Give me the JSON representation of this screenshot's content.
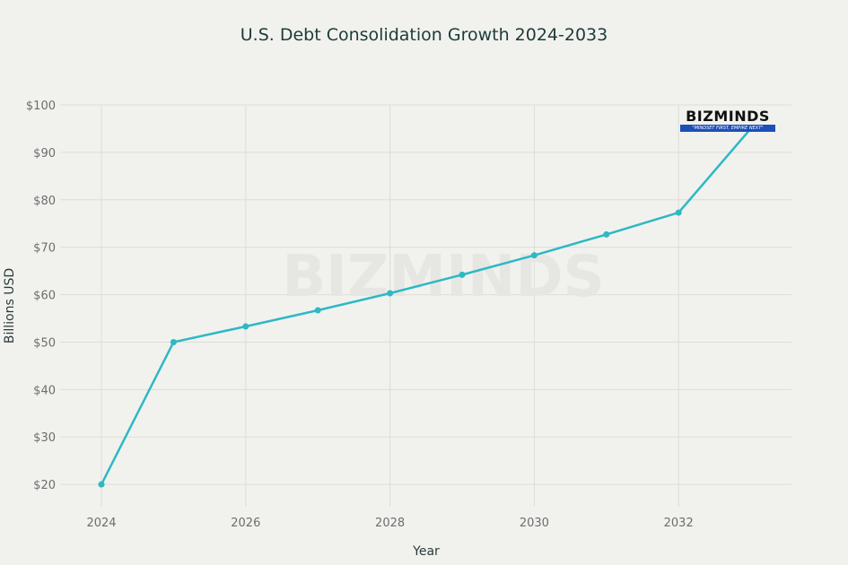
{
  "chart_data": {
    "type": "line",
    "title": "U.S. Debt Consolidation Growth 2024-2033",
    "xlabel": "Year",
    "ylabel": "Billions USD",
    "x": [
      2024,
      2025,
      2026,
      2027,
      2028,
      2029,
      2030,
      2031,
      2032,
      2033
    ],
    "series": [
      {
        "values": [
          20,
          50,
          53.3,
          56.7,
          60.3,
          64.2,
          68.3,
          72.7,
          77.3,
          95
        ]
      }
    ],
    "xticks": [
      "2024",
      "2026",
      "2028",
      "2030",
      "2032"
    ],
    "yticks": [
      "$20",
      "$30",
      "$40",
      "$50",
      "$60",
      "$70",
      "$80",
      "$90",
      "$100"
    ],
    "ylim": [
      15.3,
      100
    ],
    "xlim": [
      2023.4,
      2033.5
    ],
    "grid": true,
    "line_color": "#2eb8c4"
  },
  "watermark": {
    "name": "BIZMINDS",
    "tagline": "\"MINDSET FIRST, EMPIRE NEXT\""
  }
}
